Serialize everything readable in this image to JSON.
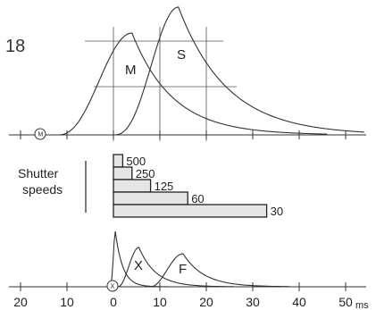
{
  "figure": {
    "number": "18",
    "curves_top": [
      {
        "label": "M",
        "color": "#333333"
      },
      {
        "label": "S",
        "color": "#333333"
      }
    ],
    "origin_marker_top": "M",
    "shutter": {
      "label_line1": "Shutter",
      "label_line2": "speeds",
      "bars": [
        {
          "label": "500",
          "duration_ms": 2
        },
        {
          "label": "250",
          "duration_ms": 4
        },
        {
          "label": "125",
          "duration_ms": 8
        },
        {
          "label": "60",
          "duration_ms": 16
        },
        {
          "label": "30",
          "duration_ms": 33
        }
      ],
      "bar_fill": "#e6e6e6"
    },
    "curves_bottom": [
      {
        "label": "X",
        "color": "#333333"
      },
      {
        "label": "F",
        "color": "#333333"
      }
    ],
    "origin_marker_bottom": "X",
    "x_axis": {
      "tick_values": [
        -20,
        -10,
        0,
        10,
        20,
        30,
        40,
        50
      ],
      "tick_labels": [
        "20",
        "10",
        "0",
        "10",
        "20",
        "30",
        "40",
        "50"
      ],
      "unit": "ms"
    }
  }
}
